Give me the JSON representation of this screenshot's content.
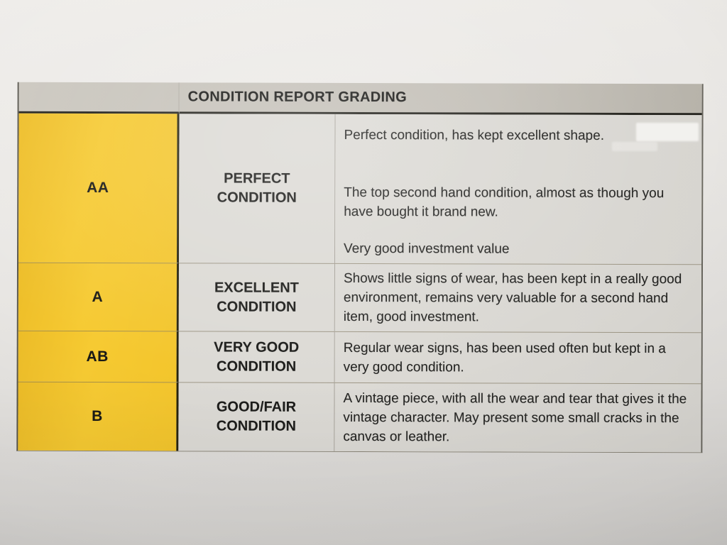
{
  "document": {
    "title": "CONDITION REPORT GRADING",
    "grades": [
      {
        "code": "AA",
        "label_lines": [
          "PERFECT",
          "CONDITION"
        ],
        "descriptions": [
          "Perfect condition, has kept excellent shape.",
          "The top second hand condition, almost as though you have bought it brand new.",
          "Very good investment value"
        ]
      },
      {
        "code": "A",
        "label_lines": [
          "EXCELLENT",
          "CONDITION"
        ],
        "descriptions": [
          "Shows little signs of wear, has been kept in a really good environment, remains very valuable for a second hand item, good investment."
        ]
      },
      {
        "code": "AB",
        "label_lines": [
          "VERY GOOD",
          "CONDITION"
        ],
        "descriptions": [
          "Regular wear signs, has been used often but kept in a very good condition."
        ]
      },
      {
        "code": "B",
        "label_lines": [
          "GOOD/FAIR",
          "CONDITION"
        ],
        "descriptions": [
          "A vintage piece, with all the wear and tear that gives it the vintage character. May present some small cracks in the canvas or leather."
        ]
      }
    ],
    "colors": {
      "header_bg": "#C6C2BA",
      "grade_cell_yellow": "#F5C72E",
      "cell_bg": "#DCDAD5",
      "text": "#1F1F1F",
      "paper": "#E7E5E2"
    }
  }
}
